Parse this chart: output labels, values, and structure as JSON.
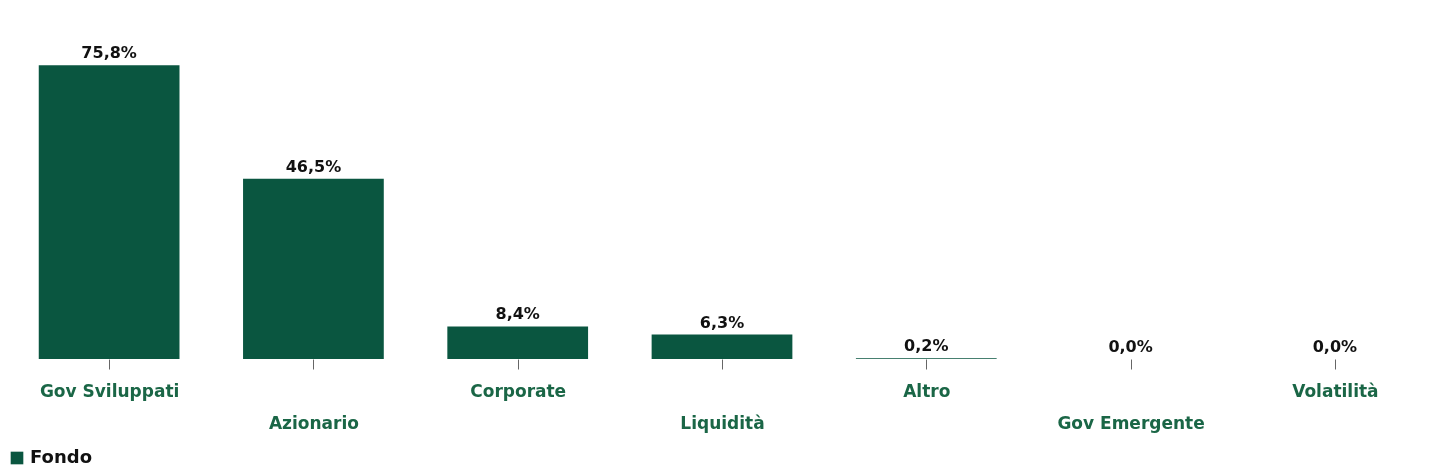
{
  "chart_data": {
    "type": "bar",
    "categories": [
      "Gov Sviluppati",
      "Azionario",
      "Corporate",
      "Liquidità",
      "Altro",
      "Gov Emergente",
      "Volatilità"
    ],
    "series": [
      {
        "name": "Fondo",
        "color": "#0a5640",
        "values": [
          75.8,
          46.5,
          8.4,
          6.3,
          0.2,
          0.0,
          0.0
        ],
        "value_labels": [
          "75,8%",
          "46,5%",
          "8,4%",
          "6,3%",
          "0,2%",
          "0,0%",
          "0,0%"
        ]
      }
    ],
    "tick_labels": "x",
    "legend": "bottom"
  }
}
